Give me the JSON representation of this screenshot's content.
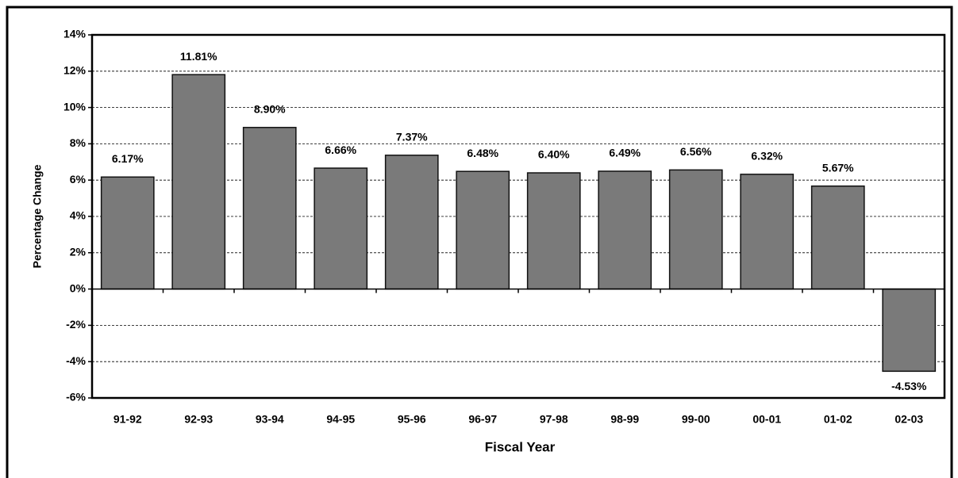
{
  "chart_data": {
    "type": "bar",
    "categories": [
      "91-92",
      "92-93",
      "93-94",
      "94-95",
      "95-96",
      "96-97",
      "97-98",
      "98-99",
      "99-00",
      "00-01",
      "01-02",
      "02-03"
    ],
    "values": [
      6.17,
      11.81,
      8.9,
      6.66,
      7.37,
      6.48,
      6.4,
      6.49,
      6.56,
      6.32,
      5.67,
      -4.53
    ],
    "value_labels": [
      "6.17%",
      "11.81%",
      "8.90%",
      "6.66%",
      "7.37%",
      "6.48%",
      "6.40%",
      "6.49%",
      "6.56%",
      "6.32%",
      "5.67%",
      "-4.53%"
    ],
    "color": "#7a7a7a",
    "x_label": "Fiscal Year",
    "y_label": "Percentage Change",
    "ylim": [
      -6,
      14
    ],
    "yticks": [
      {
        "value": -6,
        "label": "-6%"
      },
      {
        "value": -4,
        "label": "-4%"
      },
      {
        "value": -2,
        "label": "-2%"
      },
      {
        "value": 0,
        "label": "0%"
      },
      {
        "value": 2,
        "label": "2%"
      },
      {
        "value": 4,
        "label": "4%"
      },
      {
        "value": 6,
        "label": "6%"
      },
      {
        "value": 8,
        "label": "8%"
      },
      {
        "value": 10,
        "label": "10%"
      },
      {
        "value": 12,
        "label": "12%"
      },
      {
        "value": 14,
        "label": "14%"
      }
    ],
    "grid": true
  }
}
